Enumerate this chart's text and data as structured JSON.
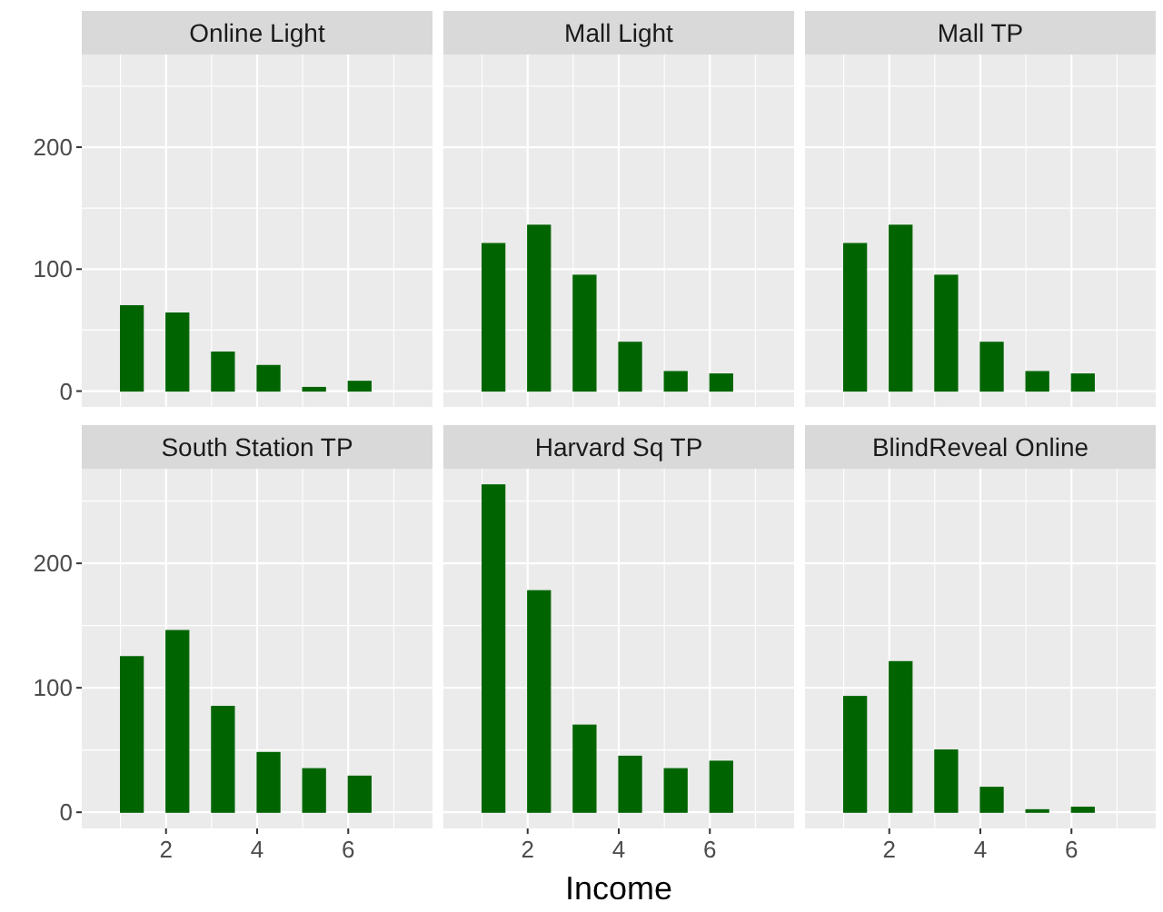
{
  "chart_data": [
    {
      "type": "histogram",
      "title": "Online Light",
      "bins": [
        0.5,
        1,
        1.5,
        2,
        2.5,
        3,
        3.5,
        4,
        4.5,
        5,
        5.5,
        6,
        6.5,
        7,
        7.5
      ],
      "values": [
        0,
        70,
        0,
        64,
        0,
        32,
        0,
        21,
        0,
        3,
        0,
        8,
        0,
        0
      ],
      "color": "#006400",
      "xlim": [
        0.15,
        7.85
      ],
      "xticks": [
        2,
        4,
        6
      ],
      "ylim": [
        -13,
        276
      ],
      "yticks": [
        0,
        100,
        200
      ],
      "grid": true,
      "tick_labels": "y"
    },
    {
      "type": "histogram",
      "title": "Mall Light",
      "bins": [
        0.5,
        1,
        1.5,
        2,
        2.5,
        3,
        3.5,
        4,
        4.5,
        5,
        5.5,
        6,
        6.5,
        7,
        7.5
      ],
      "values": [
        0,
        121,
        0,
        136,
        0,
        95,
        0,
        40,
        0,
        16,
        0,
        14,
        0,
        0
      ],
      "color": "#006400",
      "xlim": [
        0.15,
        7.85
      ],
      "xticks": [
        2,
        4,
        6
      ],
      "ylim": [
        -13,
        276
      ],
      "yticks": [
        0,
        100,
        200
      ],
      "grid": true,
      "tick_labels": false
    },
    {
      "type": "histogram",
      "title": "Mall TP",
      "bins": [
        0.5,
        1,
        1.5,
        2,
        2.5,
        3,
        3.5,
        4,
        4.5,
        5,
        5.5,
        6,
        6.5,
        7,
        7.5
      ],
      "values": [
        0,
        121,
        0,
        136,
        0,
        95,
        0,
        40,
        0,
        16,
        0,
        14,
        0,
        0
      ],
      "color": "#006400",
      "xlim": [
        0.15,
        7.85
      ],
      "xticks": [
        2,
        4,
        6
      ],
      "ylim": [
        -13,
        276
      ],
      "yticks": [
        0,
        100,
        200
      ],
      "grid": true,
      "tick_labels": false
    },
    {
      "type": "histogram",
      "title": "South Station TP",
      "bins": [
        0.5,
        1,
        1.5,
        2,
        2.5,
        3,
        3.5,
        4,
        4.5,
        5,
        5.5,
        6,
        6.5,
        7,
        7.5
      ],
      "values": [
        0,
        125,
        0,
        146,
        0,
        85,
        0,
        48,
        0,
        35,
        0,
        29,
        0,
        0
      ],
      "color": "#006400",
      "xlim": [
        0.15,
        7.85
      ],
      "xticks": [
        2,
        4,
        6
      ],
      "ylim": [
        -13,
        276
      ],
      "yticks": [
        0,
        100,
        200
      ],
      "grid": true
    },
    {
      "type": "histogram",
      "title": "Harvard Sq TP",
      "xlabel": "Income",
      "bins": [
        0.5,
        1,
        1.5,
        2,
        2.5,
        3,
        3.5,
        4,
        4.5,
        5,
        5.5,
        6,
        6.5,
        7,
        7.5
      ],
      "values": [
        0,
        263,
        0,
        178,
        0,
        70,
        0,
        45,
        0,
        35,
        0,
        41,
        0,
        0
      ],
      "color": "#006400",
      "xlim": [
        0.15,
        7.85
      ],
      "xticks": [
        2,
        4,
        6
      ],
      "ylim": [
        -13,
        276
      ],
      "yticks": [
        0,
        100,
        200
      ],
      "grid": true,
      "tick_labels": "x"
    },
    {
      "type": "histogram",
      "title": "BlindReveal Online",
      "bins": [
        0.5,
        1,
        1.5,
        2,
        2.5,
        3,
        3.5,
        4,
        4.5,
        5,
        5.5,
        6,
        6.5,
        7,
        7.5
      ],
      "values": [
        0,
        93,
        0,
        121,
        0,
        50,
        0,
        20,
        0,
        2,
        0,
        4,
        0,
        0
      ],
      "color": "#006400",
      "xlim": [
        0.15,
        7.85
      ],
      "xticks": [
        2,
        4,
        6
      ],
      "ylim": [
        -13,
        276
      ],
      "yticks": [
        0,
        100,
        200
      ],
      "grid": true,
      "tick_labels": "x"
    }
  ]
}
